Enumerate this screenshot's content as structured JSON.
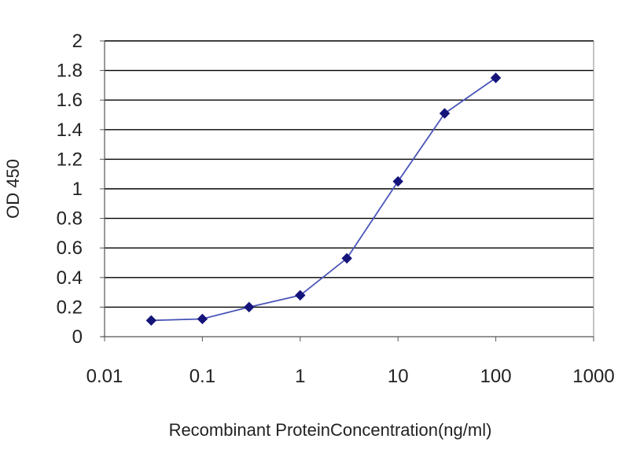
{
  "chart_data": {
    "type": "line",
    "title": "",
    "xlabel": "Recombinant ProteinConcentration(ng/ml)",
    "ylabel": "OD 450",
    "x_scale": "log",
    "xlim": [
      0.01,
      1000
    ],
    "ylim": [
      0,
      2
    ],
    "x_ticks": [
      0.01,
      0.1,
      1,
      10,
      100,
      1000
    ],
    "x_tick_labels": [
      "0.01",
      "0.1",
      "1",
      "10",
      "100",
      "1000"
    ],
    "y_ticks": [
      0,
      0.2,
      0.4,
      0.6,
      0.8,
      1,
      1.2,
      1.4,
      1.6,
      1.8,
      2
    ],
    "y_tick_labels": [
      "0",
      "0.2",
      "0.4",
      "0.6",
      "0.8",
      "1",
      "1.2",
      "1.4",
      "1.6",
      "1.8",
      "2"
    ],
    "grid": "horizontal",
    "legend": "none",
    "series": [
      {
        "x": [
          0.03,
          0.1,
          0.3,
          1,
          3,
          10,
          30,
          100
        ],
        "y": [
          0.11,
          0.12,
          0.2,
          0.28,
          0.53,
          1.05,
          1.51,
          1.75
        ],
        "color": "#1f1f8c",
        "marker": "diamond"
      }
    ],
    "colors": {
      "plot_background": "#ffffff",
      "gridline": "#000000",
      "line": "#4a55b8",
      "marker": "#14147a"
    }
  }
}
